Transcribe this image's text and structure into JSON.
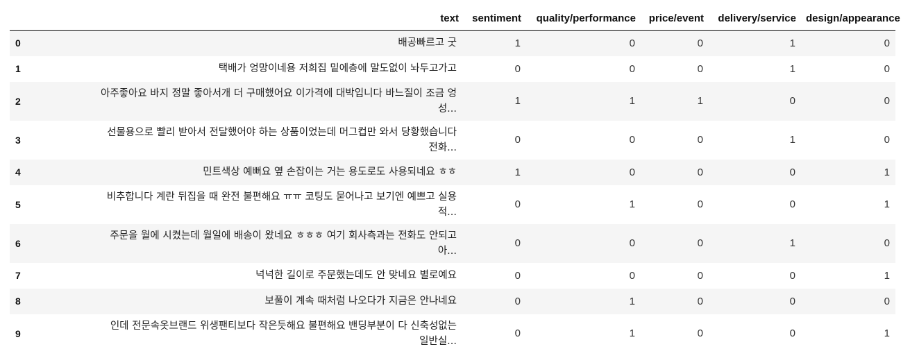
{
  "table": {
    "columns": [
      "",
      "text",
      "sentiment",
      "quality/performance",
      "price/event",
      "delivery/service",
      "design/appearance"
    ],
    "rows": [
      {
        "index": "0",
        "text_line1": "배공빠르고 굿",
        "text_line2": "",
        "sentiment": "1",
        "quality_performance": "0",
        "price_event": "0",
        "delivery_service": "1",
        "design_appearance": "0"
      },
      {
        "index": "1",
        "text_line1": "택배가 엉망이네용 저희집 밑에층에 말도없이 놔두고가고",
        "text_line2": "",
        "sentiment": "0",
        "quality_performance": "0",
        "price_event": "0",
        "delivery_service": "1",
        "design_appearance": "0"
      },
      {
        "index": "2",
        "text_line1": "아주좋아요 바지 정말 좋아서개 더 구매했어요 이가격에 대박입니다 바느질이 조금 엉",
        "text_line2": "성...",
        "sentiment": "1",
        "quality_performance": "1",
        "price_event": "1",
        "delivery_service": "0",
        "design_appearance": "0"
      },
      {
        "index": "3",
        "text_line1": "선물용으로 빨리 받아서 전달했어야 하는 상품이었는데 머그컵만 와서 당황했습니다",
        "text_line2": "전화...",
        "sentiment": "0",
        "quality_performance": "0",
        "price_event": "0",
        "delivery_service": "1",
        "design_appearance": "0"
      },
      {
        "index": "4",
        "text_line1": "민트색상 예뻐요 옆 손잡이는 거는 용도로도 사용되네요 ㅎㅎ",
        "text_line2": "",
        "sentiment": "1",
        "quality_performance": "0",
        "price_event": "0",
        "delivery_service": "0",
        "design_appearance": "1"
      },
      {
        "index": "5",
        "text_line1": "비추합니다 계란 뒤집을 때 완전 불편해요 ㅠㅠ 코팅도 묻어나고 보기엔 예쁘고 실용",
        "text_line2": "적...",
        "sentiment": "0",
        "quality_performance": "1",
        "price_event": "0",
        "delivery_service": "0",
        "design_appearance": "1"
      },
      {
        "index": "6",
        "text_line1": "주문을 월에 시켰는데 월일에 배송이 왔네요 ㅎㅎㅎ 여기 회사측과는 전화도 안되고",
        "text_line2": "아...",
        "sentiment": "0",
        "quality_performance": "0",
        "price_event": "0",
        "delivery_service": "1",
        "design_appearance": "0"
      },
      {
        "index": "7",
        "text_line1": "넉넉한 길이로 주문했는데도 안 맞네요 별로예요",
        "text_line2": "",
        "sentiment": "0",
        "quality_performance": "0",
        "price_event": "0",
        "delivery_service": "0",
        "design_appearance": "1"
      },
      {
        "index": "8",
        "text_line1": "보풀이 계속 때처럼 나오다가 지금은 안나네요",
        "text_line2": "",
        "sentiment": "0",
        "quality_performance": "1",
        "price_event": "0",
        "delivery_service": "0",
        "design_appearance": "0"
      },
      {
        "index": "9",
        "text_line1": "인데 전문속옷브랜드 위생팬티보다 작은듯해요 불편해요 밴딩부분이 다 신축성없는",
        "text_line2": "일반실...",
        "sentiment": "0",
        "quality_performance": "1",
        "price_event": "0",
        "delivery_service": "0",
        "design_appearance": "1"
      }
    ]
  }
}
